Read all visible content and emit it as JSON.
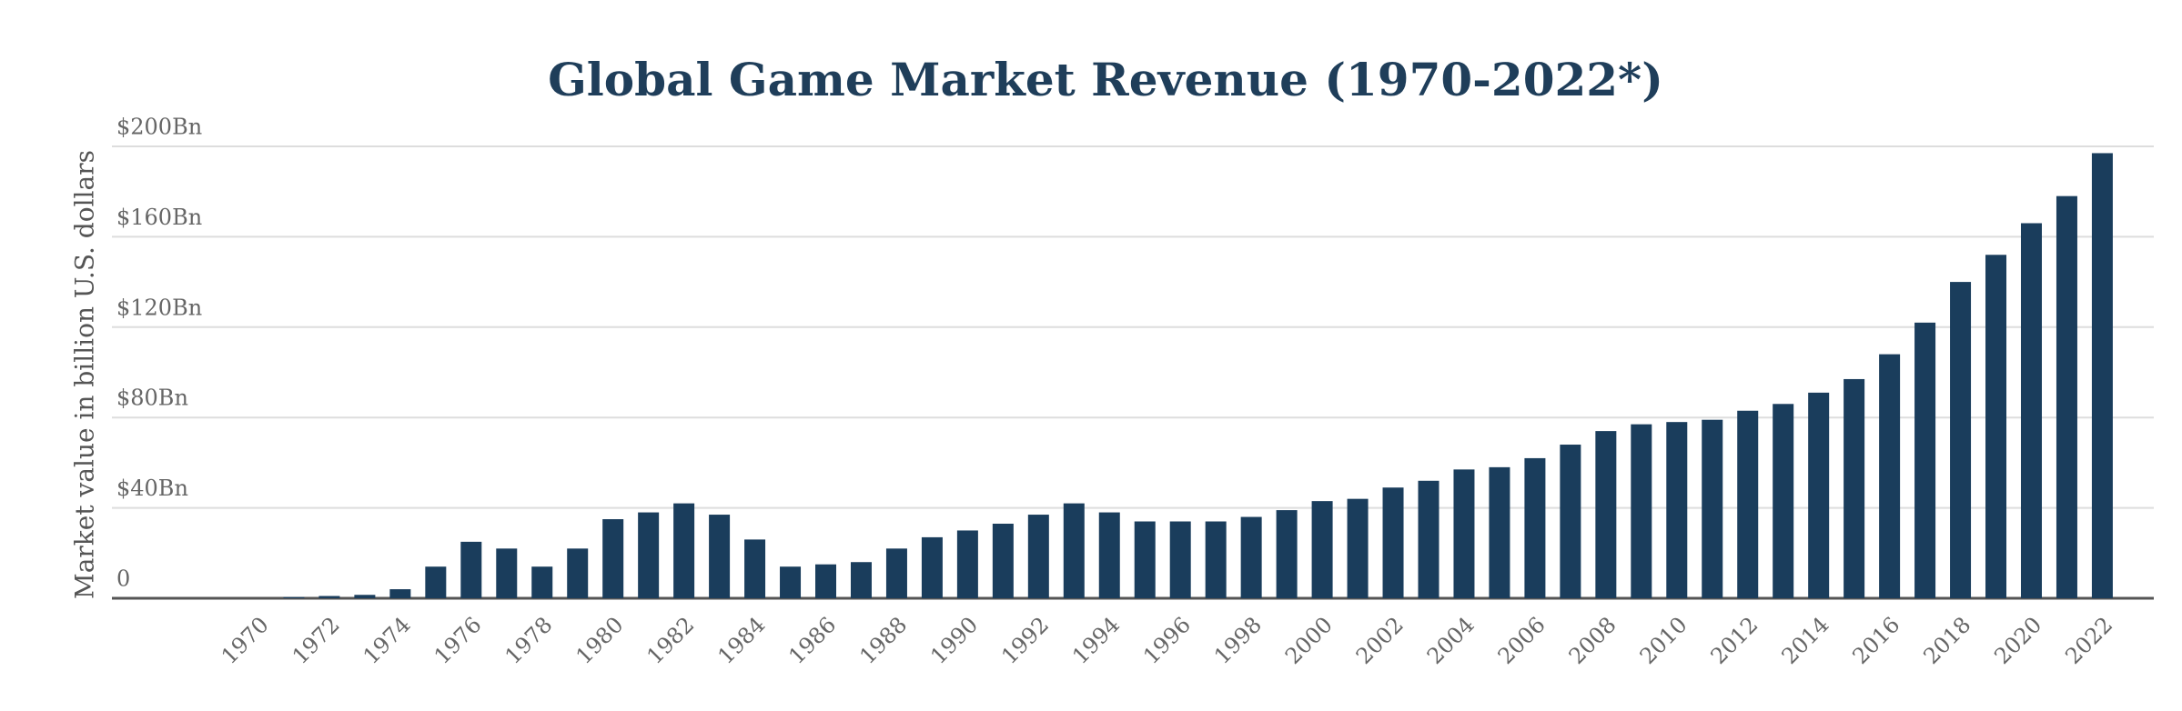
{
  "chart_data": {
    "type": "bar",
    "title": "Global Game Market Revenue (1970-2022*)",
    "y_label": "Market value in billion U.S. dollars",
    "categories": [
      "1970",
      null,
      "1972",
      null,
      "1974",
      null,
      "1976",
      null,
      "1978",
      null,
      "1980",
      null,
      "1982",
      null,
      "1984",
      null,
      "1986",
      null,
      "1988",
      null,
      "1990",
      null,
      "1992",
      null,
      "1994",
      null,
      "1996",
      null,
      "1998",
      null,
      "2000",
      null,
      "2002",
      null,
      "2004",
      null,
      "2006",
      null,
      "2008",
      null,
      "2010",
      null,
      "2012",
      null,
      "2014",
      null,
      "2016",
      null,
      "2018",
      null,
      "2020",
      null,
      "2022"
    ],
    "values": [
      0,
      0.5,
      1,
      1.5,
      4,
      14,
      25,
      22,
      14,
      22,
      35,
      38,
      42,
      37,
      26,
      14,
      15,
      16,
      22,
      27,
      30,
      33,
      37,
      42,
      38,
      34,
      34,
      34,
      36,
      39,
      43,
      44,
      49,
      52,
      57,
      58,
      62,
      68,
      74,
      77,
      78,
      79,
      83,
      86,
      91,
      97,
      108,
      122,
      140,
      152,
      166,
      178,
      197
    ],
    "color": "#1a3d5c",
    "ylim": [
      0,
      200
    ],
    "yticks": [
      0,
      {
        "value": 40,
        "label": "$40Bn"
      },
      {
        "value": 80,
        "label": "$80Bn"
      },
      {
        "value": 120,
        "label": "$120Bn"
      },
      {
        "value": 160,
        "label": "$160Bn"
      },
      {
        "value": 200,
        "label": "$200Bn"
      }
    ],
    "grid": true
  }
}
